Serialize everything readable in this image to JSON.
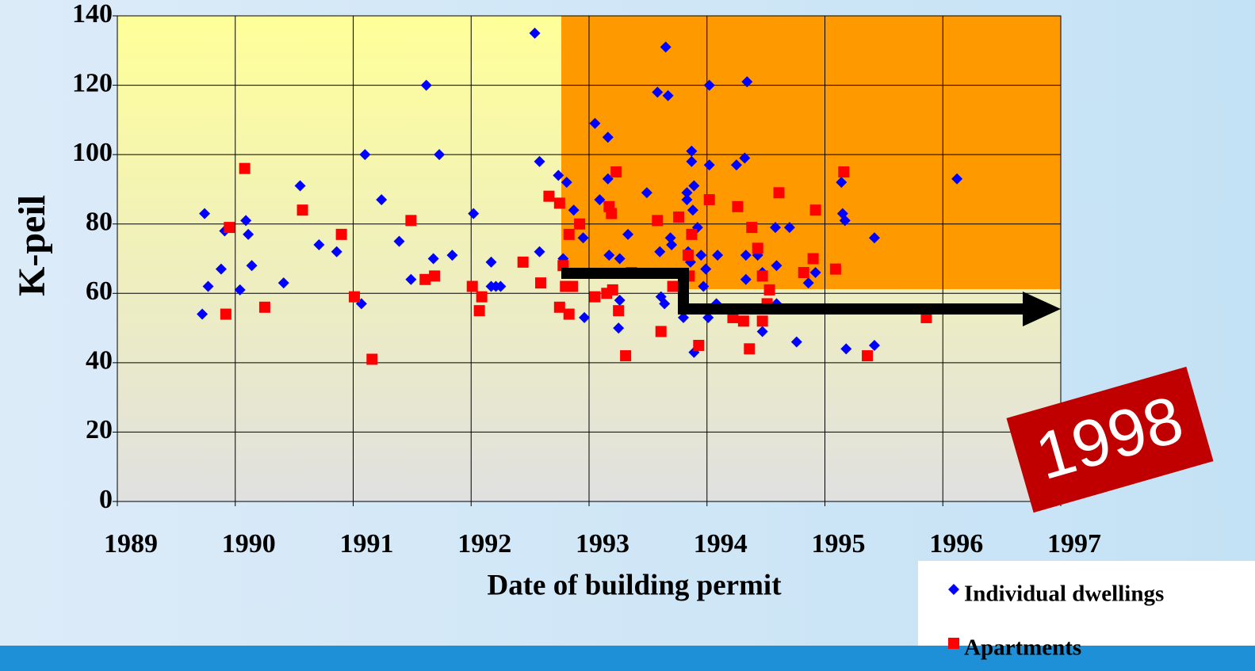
{
  "chart_data": {
    "type": "scatter",
    "y_label": "K-peil",
    "x_label": "Date of building permit",
    "annotation": "1998",
    "xlim": [
      1989,
      1997
    ],
    "ylim": [
      0,
      140
    ],
    "xticks": [
      1989,
      1990,
      1991,
      1992,
      1993,
      1994,
      1995,
      1996,
      1997
    ],
    "yticks": [
      0,
      20,
      40,
      60,
      80,
      100,
      120,
      140
    ],
    "grid": true,
    "legend": "bottom-right",
    "series": [
      {
        "name": "Individual dwellings",
        "color": "#0000ff",
        "marker": "diamond",
        "x": [
          1989.72,
          1989.74,
          1989.77,
          1989.88,
          1989.91,
          1990.04,
          1990.09,
          1990.11,
          1990.14,
          1990.41,
          1990.55,
          1990.71,
          1990.86,
          1991.07,
          1991.1,
          1991.24,
          1991.39,
          1991.49,
          1991.62,
          1991.68,
          1991.73,
          1991.84,
          1992.02,
          1992.17,
          1992.17,
          1992.21,
          1992.25,
          1992.54,
          1992.58,
          1992.58,
          1992.74,
          1992.78,
          1992.81,
          1992.87,
          1992.95,
          1992.96,
          1993.05,
          1993.09,
          1993.16,
          1993.16,
          1993.17,
          1993.25,
          1993.26,
          1993.26,
          1993.33,
          1993.49,
          1993.58,
          1993.6,
          1993.61,
          1993.67,
          1993.64,
          1993.69,
          1993.7,
          1993.65,
          1993.8,
          1993.83,
          1993.83,
          1993.84,
          1993.86,
          1993.87,
          1993.87,
          1993.88,
          1993.89,
          1993.89,
          1993.92,
          1993.95,
          1993.97,
          1993.99,
          1994.01,
          1994.02,
          1994.02,
          1994.09,
          1994.08,
          1994.25,
          1994.32,
          1994.33,
          1994.34,
          1994.33,
          1994.43,
          1994.47,
          1994.47,
          1994.58,
          1994.59,
          1994.59,
          1994.7,
          1994.76,
          1994.86,
          1994.92,
          1995.14,
          1995.15,
          1995.17,
          1995.18,
          1995.42,
          1995.42,
          1996.12
        ],
        "values": [
          54,
          83,
          62,
          67,
          78,
          61,
          81,
          77,
          68,
          63,
          91,
          74,
          72,
          57,
          100,
          87,
          75,
          64,
          120,
          70,
          100,
          71,
          83,
          69,
          62,
          62,
          62,
          135,
          98,
          72,
          94,
          70,
          92,
          84,
          76,
          53,
          109,
          87,
          105,
          93,
          71,
          50,
          58,
          70,
          77,
          89,
          118,
          72,
          59,
          117,
          57,
          76,
          74,
          131,
          53,
          89,
          87,
          72,
          69,
          101,
          98,
          84,
          43,
          91,
          79,
          71,
          62,
          67,
          53,
          120,
          97,
          71,
          57,
          97,
          99,
          71,
          121,
          64,
          71,
          49,
          66,
          79,
          68,
          57,
          79,
          46,
          63,
          66,
          92,
          83,
          81,
          44,
          45,
          76,
          93
        ]
      },
      {
        "name": "Apartments",
        "color": "#ff0000",
        "marker": "square",
        "x": [
          1989.92,
          1989.95,
          1990.08,
          1990.25,
          1990.57,
          1990.9,
          1991.01,
          1991.16,
          1991.49,
          1991.61,
          1991.69,
          1992.01,
          1992.07,
          1992.09,
          1992.44,
          1992.59,
          1992.66,
          1992.75,
          1992.75,
          1992.78,
          1992.8,
          1992.83,
          1992.83,
          1992.86,
          1992.92,
          1993.05,
          1993.15,
          1993.17,
          1993.19,
          1993.2,
          1993.23,
          1993.25,
          1993.31,
          1993.36,
          1993.58,
          1993.61,
          1993.71,
          1993.76,
          1993.84,
          1993.85,
          1993.87,
          1993.93,
          1994.02,
          1994.22,
          1994.26,
          1994.31,
          1994.36,
          1994.38,
          1994.43,
          1994.47,
          1994.47,
          1994.51,
          1994.53,
          1994.61,
          1994.82,
          1994.9,
          1994.92,
          1995.09,
          1995.16,
          1995.36,
          1995.86
        ],
        "values": [
          54,
          79,
          96,
          56,
          84,
          77,
          59,
          41,
          81,
          64,
          65,
          62,
          55,
          59,
          69,
          63,
          88,
          86,
          56,
          68,
          62,
          77,
          54,
          62,
          80,
          59,
          60,
          85,
          83,
          61,
          95,
          55,
          42,
          66,
          81,
          49,
          62,
          82,
          71,
          65,
          77,
          45,
          87,
          53,
          85,
          52,
          44,
          79,
          73,
          65,
          52,
          57,
          61,
          89,
          66,
          70,
          84,
          67,
          95,
          42,
          53
        ]
      }
    ]
  }
}
